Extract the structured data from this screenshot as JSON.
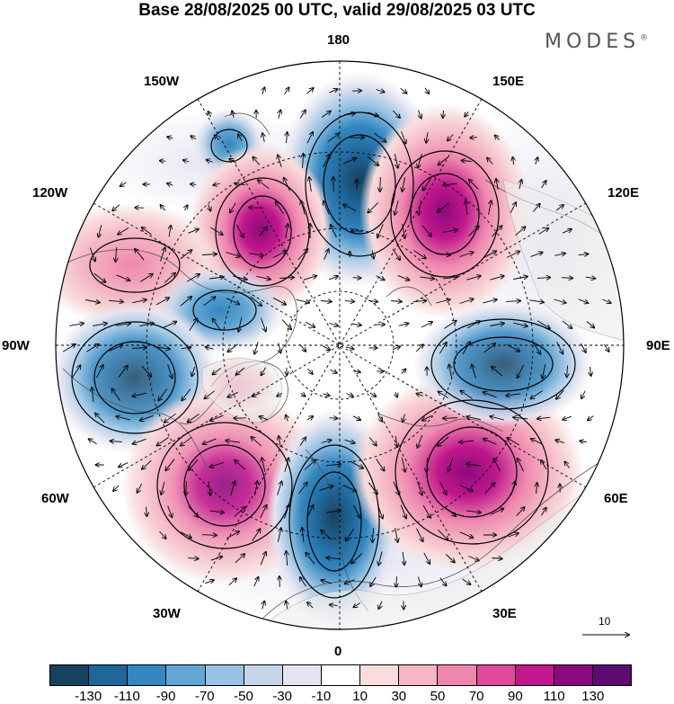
{
  "title": "Base 28/08/2025 00 UTC, valid 29/08/2025 03 UTC",
  "brand": "MODES",
  "brand_mark": "®",
  "lon_labels": {
    "n180": "180",
    "e150": "150E",
    "e120": "120E",
    "e90": "90E",
    "e60": "60E",
    "e30": "30E",
    "z0": "0",
    "w30": "30W",
    "w60": "60W",
    "w90": "90W",
    "w120": "120W",
    "w150": "150W"
  },
  "reference_vector": "10",
  "colorbar": {
    "colors": [
      "#16415f",
      "#1f6699",
      "#3487c0",
      "#62a7d3",
      "#99c3e3",
      "#c6d6ea",
      "#e5e5f1",
      "#ffffff",
      "#f9dcdc",
      "#f4b7c4",
      "#ee87ae",
      "#e0489c",
      "#c0178c",
      "#8c0a7d",
      "#5e0a73"
    ],
    "tick_labels": [
      "-130",
      "-110",
      "-90",
      "-70",
      "-50",
      "-30",
      "-10",
      "10",
      "30",
      "50",
      "70",
      "90",
      "110",
      "130"
    ]
  },
  "anomaly_centers": [
    {
      "name": "blue-center-180",
      "sign": "negative",
      "lon": 180,
      "peak": -120
    },
    {
      "name": "red-center-150e",
      "sign": "positive",
      "lon": 150,
      "peak": 110
    },
    {
      "name": "red-center-150w",
      "sign": "positive",
      "lon": -160,
      "peak": 100
    },
    {
      "name": "red-center-120w",
      "sign": "positive",
      "lon": -120,
      "peak": 60
    },
    {
      "name": "blue-center-100w",
      "sign": "negative",
      "lon": -100,
      "peak": -60
    },
    {
      "name": "blue-center-90w",
      "sign": "negative",
      "lon": -80,
      "peak": -100
    },
    {
      "name": "red-center-60w",
      "sign": "positive",
      "lon": -50,
      "peak": 100
    },
    {
      "name": "blue-center-0",
      "sign": "negative",
      "lon": 0,
      "peak": -110
    },
    {
      "name": "red-center-60e",
      "sign": "positive",
      "lon": 50,
      "peak": 110
    },
    {
      "name": "blue-center-90e",
      "sign": "negative",
      "lon": 90,
      "peak": -100
    },
    {
      "name": "blue-center-150w-small",
      "sign": "negative",
      "lon": -160,
      "peak": -40
    }
  ]
}
